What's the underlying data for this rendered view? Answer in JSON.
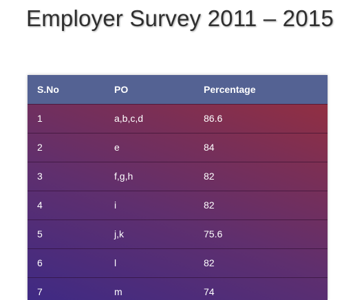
{
  "page": {
    "title": "Employer Survey 2011 – 2015"
  },
  "table": {
    "headers": [
      "S.No",
      "PO",
      "Percentage"
    ],
    "rows": [
      [
        "1",
        "a,b,c,d",
        "86.6"
      ],
      [
        "2",
        "e",
        "84"
      ],
      [
        "3",
        "f,g,h",
        "82"
      ],
      [
        "4",
        "i",
        "82"
      ],
      [
        "5",
        "j,k",
        "75.6"
      ],
      [
        "6",
        "l",
        "82"
      ],
      [
        "7",
        "m",
        "74"
      ]
    ]
  },
  "colors": {
    "header_bg": "#546293",
    "gradient_start": "#3f2a84",
    "gradient_end": "#9b2f3a",
    "title_text": "#2f2f2f"
  }
}
